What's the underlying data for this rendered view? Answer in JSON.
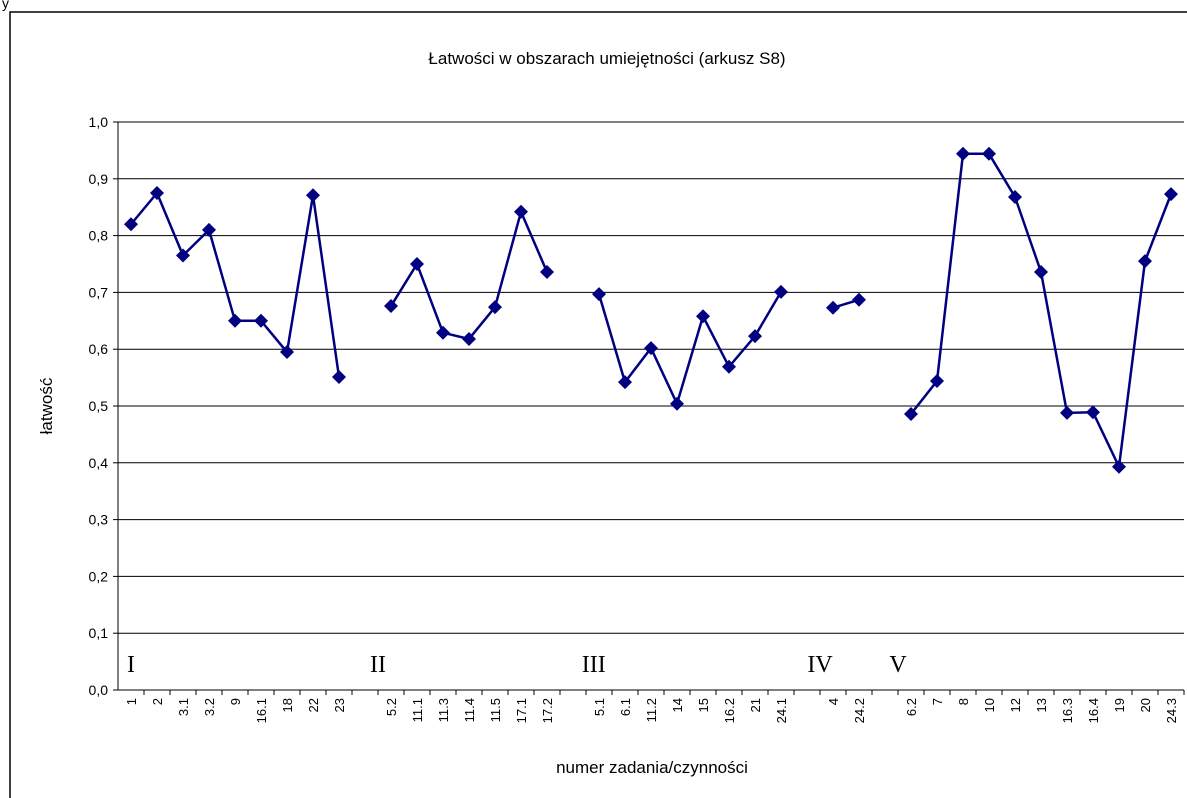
{
  "caption": "y",
  "chart_data": {
    "type": "line",
    "title": "Łatwości w obszarach umiejętności (arkusz S8)",
    "xlabel": "numer zadania/czynności",
    "ylabel": "łatwość",
    "categories": [
      "1",
      "2",
      "3.1",
      "3.2",
      "9",
      "16.1",
      "18",
      "22",
      "23",
      null,
      "5.2",
      "11.1",
      "11.3",
      "11.4",
      "11.5",
      "17.1",
      "17.2",
      null,
      "5.1",
      "6.1",
      "11.2",
      "14",
      "15",
      "16.2",
      "21",
      "24.1",
      null,
      "4",
      "24.2",
      null,
      "6.2",
      "7",
      "8",
      "10",
      "12",
      "13",
      "16.3",
      "16.4",
      "19",
      "20",
      "24.3"
    ],
    "series": [
      {
        "name": "łatwość",
        "color": "#000080",
        "values": [
          0.82,
          0.875,
          0.765,
          0.81,
          0.65,
          0.65,
          0.595,
          0.871,
          0.551,
          null,
          0.676,
          0.75,
          0.629,
          0.618,
          0.674,
          0.842,
          0.736,
          null,
          0.697,
          0.542,
          0.602,
          0.504,
          0.658,
          0.569,
          0.623,
          0.701,
          null,
          0.673,
          0.687,
          null,
          0.486,
          0.544,
          0.944,
          0.944,
          0.868,
          0.736,
          0.488,
          0.489,
          0.393,
          0.755,
          0.873
        ]
      }
    ],
    "annotations": [
      "I",
      "II",
      "III",
      "IV",
      "V"
    ],
    "ylim": [
      0,
      1
    ],
    "yticks": [
      {
        "value": 0,
        "label": "0,0"
      },
      {
        "value": 0.1,
        "label": "0,1"
      },
      {
        "value": 0.2,
        "label": "0,2"
      },
      {
        "value": 0.3,
        "label": "0,3"
      },
      {
        "value": 0.4,
        "label": "0,4"
      },
      {
        "value": 0.5,
        "label": "0,5"
      },
      {
        "value": 0.6,
        "label": "0,6"
      },
      {
        "value": 0.7,
        "label": "0,7"
      },
      {
        "value": 0.8,
        "label": "0,8"
      },
      {
        "value": 0.9,
        "label": "0,9"
      },
      {
        "value": 1,
        "label": "1,0"
      }
    ],
    "grid": true
  }
}
